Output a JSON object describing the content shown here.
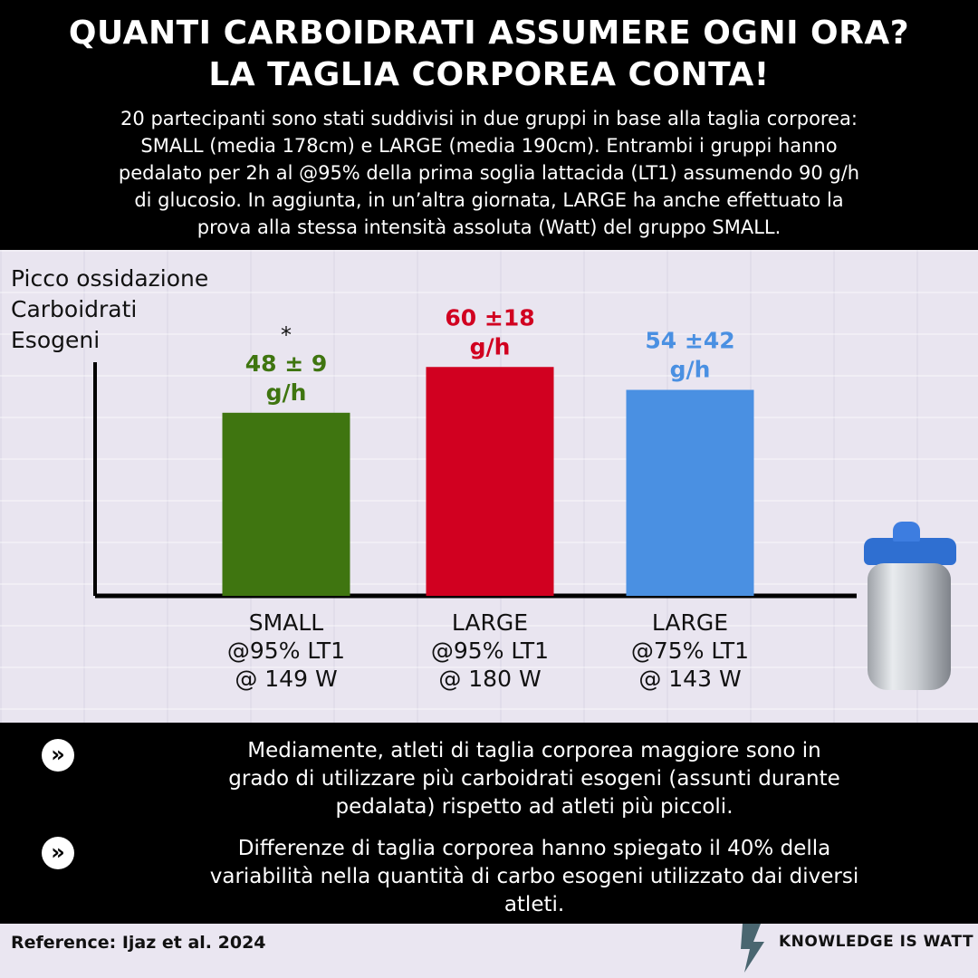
{
  "header": {
    "title_line1": "QUANTI CARBOIDRATI ASSUMERE OGNI ORA?",
    "title_line2": "LA TAGLIA CORPOREA CONTA!",
    "intro": [
      "20 partecipanti sono stati suddivisi in due gruppi in base alla taglia corporea:",
      "SMALL (media 178cm) e LARGE (media 190cm). Entrambi i gruppi hanno",
      "pedalato per 2h al @95% della prima soglia lattacida (LT1) assumendo 90 g/h",
      "di glucosio. In aggiunta, in un’altra giornata, LARGE ha anche effettuato la",
      "prova alla stessa intensità assoluta (Watt) del gruppo SMALL."
    ]
  },
  "chart_data": {
    "type": "bar",
    "ylabel": [
      "Picco ossidazione",
      "Carboidrati",
      "Esogeni"
    ],
    "unit": "g/h",
    "ylim": [
      0,
      80
    ],
    "categories": [
      [
        "SMALL",
        "@95% LT1",
        "@ 149 W"
      ],
      [
        "LARGE",
        "@95% LT1",
        "@ 180 W"
      ],
      [
        "LARGE",
        "@75% LT1",
        "@ 143 W"
      ]
    ],
    "values": [
      48,
      60,
      54
    ],
    "value_labels": [
      "48 ± 9",
      "60 ±18",
      "54 ±42"
    ],
    "colors": [
      "#3f7510",
      "#d10020",
      "#4a90e2"
    ],
    "annotations": [
      {
        "category_index": 0,
        "text": "*"
      }
    ],
    "grid": false
  },
  "bullets": [
    {
      "icon": "double-chevron-right-icon",
      "glyph": "»",
      "lines": [
        "Mediamente, atleti di taglia corporea maggiore sono in",
        "grado di utilizzare più carboidrati esogeni (assunti durante",
        "pedalata) rispetto ad atleti più piccoli."
      ]
    },
    {
      "icon": "double-chevron-right-icon",
      "glyph": "»",
      "lines": [
        "Differenze di taglia corporea hanno spiegato il 40% della",
        "variabilità nella quantità di carbo esogeni utilizzato dai diversi",
        "atleti."
      ]
    }
  ],
  "footer": {
    "reference": "Reference:  Ijaz et al. 2024",
    "brand": "KNOWLEDGE IS WATT",
    "brand_icon": "lightning-bolt-icon",
    "brand_color": "#4a6670"
  },
  "illustration": {
    "icon": "water-bottle-icon",
    "cap_color": "#2f6fd1"
  }
}
